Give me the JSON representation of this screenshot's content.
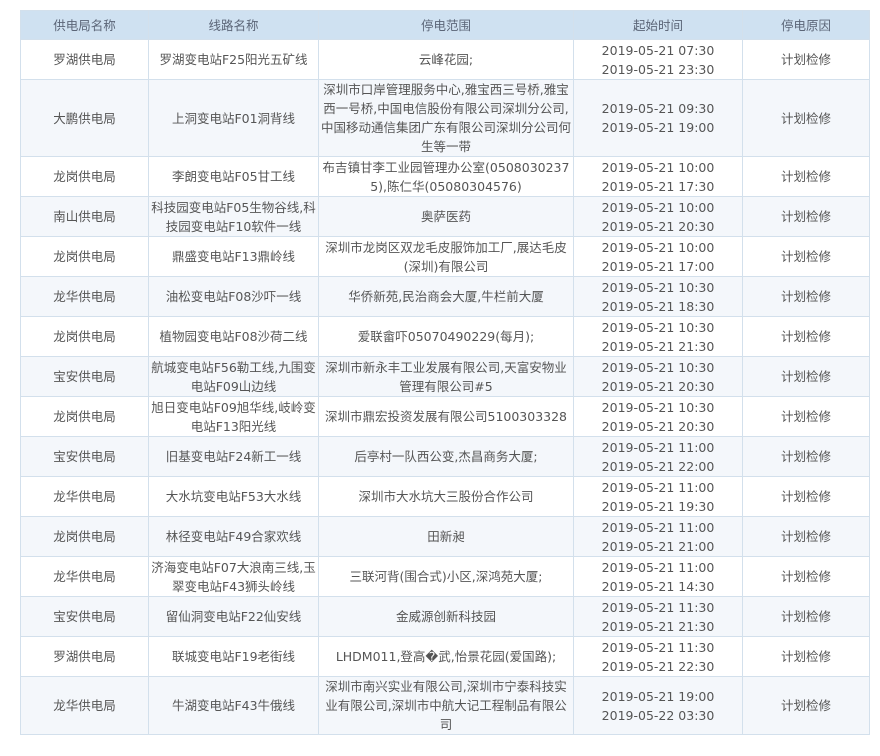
{
  "headers": [
    "供电局名称",
    "线路名称",
    "停电范围",
    "起始时间",
    "停电原因"
  ],
  "rows": [
    {
      "bureau": "罗湖供电局",
      "line": "罗湖变电站F25阳光五矿线",
      "scope": "云峰花园;",
      "start": "2019-05-21 07:30",
      "end": "2019-05-21 23:30",
      "reason": "计划检修"
    },
    {
      "bureau": "大鹏供电局",
      "line": "上洞变电站F01洞背线",
      "scope": "深圳市口岸管理服务中心,雅宝西三号桥,雅宝西一号桥,中国电信股份有限公司深圳分公司,中国移动通信集团广东有限公司深圳分公司何生等一带",
      "start": "2019-05-21 09:30",
      "end": "2019-05-21 19:00",
      "reason": "计划检修"
    },
    {
      "bureau": "龙岗供电局",
      "line": "李朗变电站F05甘工线",
      "scope": "布吉镇甘李工业园管理办公室(05080302375),陈仁华(05080304576)",
      "start": "2019-05-21 10:00",
      "end": "2019-05-21 17:30",
      "reason": "计划检修"
    },
    {
      "bureau": "南山供电局",
      "line": "科技园变电站F05生物谷线,科技园变电站F10软件一线",
      "scope": "奥萨医药",
      "start": "2019-05-21 10:00",
      "end": "2019-05-21 20:30",
      "reason": "计划检修"
    },
    {
      "bureau": "龙岗供电局",
      "line": "鼎盛变电站F13鼎岭线",
      "scope": "深圳市龙岗区双龙毛皮服饰加工厂,展达毛皮(深圳)有限公司",
      "start": "2019-05-21 10:00",
      "end": "2019-05-21 17:00",
      "reason": "计划检修"
    },
    {
      "bureau": "龙华供电局",
      "line": "油松变电站F08沙吓一线",
      "scope": "华侨新苑,民治商会大厦,牛栏前大厦",
      "start": "2019-05-21 10:30",
      "end": "2019-05-21 18:30",
      "reason": "计划检修"
    },
    {
      "bureau": "龙岗供电局",
      "line": "植物园变电站F08沙荷二线",
      "scope": "爱联畲吓05070490229(每月);",
      "start": "2019-05-21 10:30",
      "end": "2019-05-21 21:30",
      "reason": "计划检修"
    },
    {
      "bureau": "宝安供电局",
      "line": "航城变电站F56勒工线,九围变电站F09山边线",
      "scope": "深圳市新永丰工业发展有限公司,天富安物业管理有限公司#5",
      "start": "2019-05-21 10:30",
      "end": "2019-05-21 20:30",
      "reason": "计划检修"
    },
    {
      "bureau": "龙岗供电局",
      "line": "旭日变电站F09旭华线,岐岭变电站F13阳光线",
      "scope": "深圳市鼎宏投资发展有限公司5100303328",
      "start": "2019-05-21 10:30",
      "end": "2019-05-21 20:30",
      "reason": "计划检修"
    },
    {
      "bureau": "宝安供电局",
      "line": "旧基变电站F24新工一线",
      "scope": "后亭村一队西公变,杰昌商务大厦;",
      "start": "2019-05-21 11:00",
      "end": "2019-05-21 22:00",
      "reason": "计划检修"
    },
    {
      "bureau": "龙华供电局",
      "line": "大水坑变电站F53大水线",
      "scope": "深圳市大水坑大三股份合作公司",
      "start": "2019-05-21 11:00",
      "end": "2019-05-21 19:30",
      "reason": "计划检修"
    },
    {
      "bureau": "龙岗供电局",
      "line": "林径变电站F49合家欢线",
      "scope": "田新昶",
      "start": "2019-05-21 11:00",
      "end": "2019-05-21 21:00",
      "reason": "计划检修"
    },
    {
      "bureau": "龙华供电局",
      "line": "济海变电站F07大浪南三线,玉翠变电站F43狮头岭线",
      "scope": "三联河背(围合式)小区,深鸿苑大厦;",
      "start": "2019-05-21 11:00",
      "end": "2019-05-21 14:30",
      "reason": "计划检修"
    },
    {
      "bureau": "宝安供电局",
      "line": "留仙洞变电站F22仙安线",
      "scope": "金威源创新科技园",
      "start": "2019-05-21 11:30",
      "end": "2019-05-21 21:30",
      "reason": "计划检修"
    },
    {
      "bureau": "罗湖供电局",
      "line": "联城变电站F19老街线",
      "scope": "LHDM011,登高�武,怡景花园(爱国路);",
      "start": "2019-05-21 11:30",
      "end": "2019-05-21 22:30",
      "reason": "计划检修"
    },
    {
      "bureau": "龙华供电局",
      "line": "牛湖变电站F43牛俄线",
      "scope": "深圳市南兴实业有限公司,深圳市宁泰科技实业有限公司,深圳市中航大记工程制品有限公司",
      "start": "2019-05-21 19:00",
      "end": "2019-05-22 03:30",
      "reason": "计划检修"
    }
  ]
}
